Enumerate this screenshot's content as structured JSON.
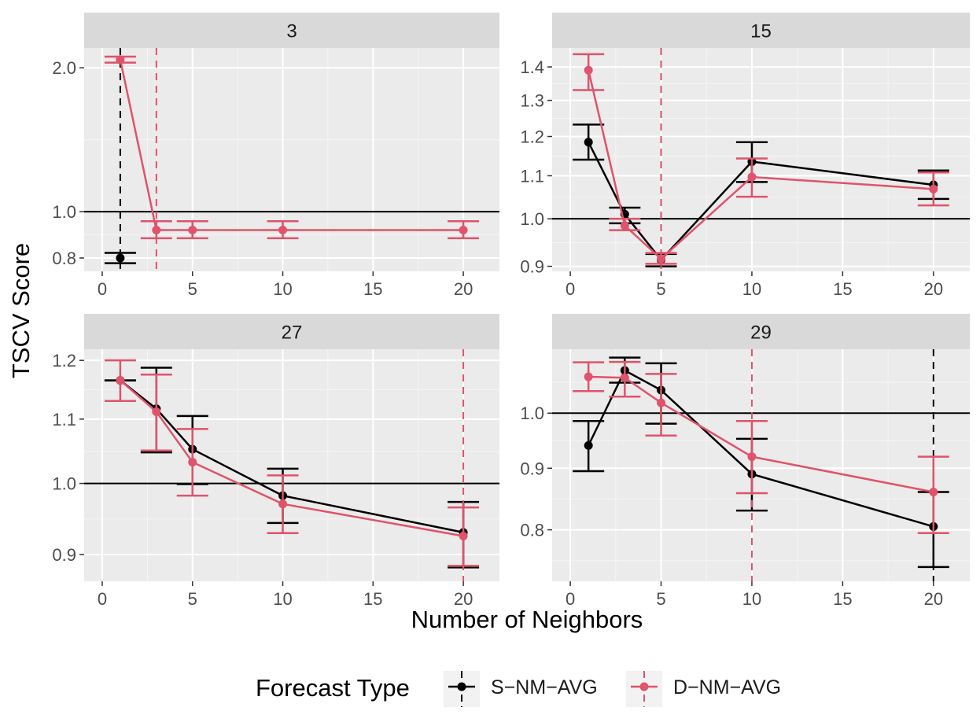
{
  "colors": {
    "panel_bg": "#EBEBEB",
    "strip_bg": "#D9D9D9",
    "grid_major": "#FFFFFF",
    "grid_minor": "#F5F5F5",
    "reference_line": "#000000",
    "text": "#1A1A1A",
    "tick_text": "#4D4D4D"
  },
  "chart_data": [
    {
      "type": "line",
      "panel": "3",
      "xlim": [
        -1,
        22
      ],
      "ylim": [
        0.75,
        2.2
      ],
      "y_scale": "log",
      "x_ticks": [
        0,
        5,
        10,
        15,
        20
      ],
      "y_ticks": [
        0.8,
        1.0,
        2.0
      ],
      "y_tick_labels": [
        "0.8",
        "1.0",
        "2.0"
      ],
      "reference_y": 1.0,
      "series": [
        {
          "name": "S−NM−AVG",
          "color": "#000000",
          "x": [
            1
          ],
          "y": [
            0.8
          ],
          "ymin": [
            0.78
          ],
          "ymax": [
            0.82
          ],
          "best_x": 1
        },
        {
          "name": "D−NM−AVG",
          "color": "#DF536B",
          "x": [
            1,
            3,
            5,
            10,
            20
          ],
          "y": [
            2.08,
            0.915,
            0.915,
            0.915,
            0.915
          ],
          "ymin": [
            2.05,
            0.88,
            0.88,
            0.88,
            0.88
          ],
          "ymax": [
            2.11,
            0.955,
            0.955,
            0.955,
            0.955
          ],
          "best_x": 3
        }
      ]
    },
    {
      "type": "line",
      "panel": "15",
      "xlim": [
        -1,
        22
      ],
      "ylim": [
        0.89,
        1.46
      ],
      "y_scale": "log",
      "x_ticks": [
        0,
        5,
        10,
        15,
        20
      ],
      "y_ticks": [
        0.9,
        1.0,
        1.1,
        1.2,
        1.3,
        1.4
      ],
      "y_tick_labels": [
        "0.9",
        "1.0",
        "1.1",
        "1.2",
        "1.3",
        "1.4"
      ],
      "reference_y": 1.0,
      "series": [
        {
          "name": "S−NM−AVG",
          "color": "#000000",
          "x": [
            1,
            3,
            5,
            10,
            20
          ],
          "y": [
            1.185,
            1.01,
            0.913,
            1.135,
            1.078
          ],
          "ymin": [
            1.14,
            0.99,
            0.9,
            1.085,
            1.045
          ],
          "ymax": [
            1.232,
            1.025,
            0.925,
            1.185,
            1.113
          ],
          "best_x": 5
        },
        {
          "name": "D−NM−AVG",
          "color": "#DF536B",
          "x": [
            1,
            3,
            5,
            10,
            20
          ],
          "y": [
            1.39,
            0.985,
            0.915,
            1.097,
            1.068
          ],
          "ymin": [
            1.33,
            0.975,
            0.905,
            1.05,
            1.03
          ],
          "ymax": [
            1.44,
            1.0,
            0.927,
            1.143,
            1.108
          ],
          "best_x": 5
        }
      ]
    },
    {
      "type": "line",
      "panel": "27",
      "xlim": [
        -1,
        22
      ],
      "ylim": [
        0.865,
        1.22
      ],
      "y_scale": "log",
      "x_ticks": [
        0,
        5,
        10,
        15,
        20
      ],
      "y_ticks": [
        0.9,
        1.0,
        1.1,
        1.2
      ],
      "y_tick_labels": [
        "0.9",
        "1.0",
        "1.1",
        "1.2"
      ],
      "reference_y": 1.0,
      "series": [
        {
          "name": "S−NM−AVG",
          "color": "#000000",
          "x": [
            1,
            3,
            5,
            10,
            20
          ],
          "y": [
            1.165,
            1.117,
            1.052,
            0.982,
            0.93
          ],
          "ymin": [
            1.165,
            1.047,
            0.999,
            0.943,
            0.883
          ],
          "ymax": [
            1.165,
            1.187,
            1.105,
            1.022,
            0.973
          ],
          "best_x": null
        },
        {
          "name": "D−NM−AVG",
          "color": "#DF536B",
          "x": [
            1,
            3,
            5,
            10,
            20
          ],
          "y": [
            1.165,
            1.112,
            1.032,
            0.97,
            0.925
          ],
          "ymin": [
            1.13,
            1.05,
            0.982,
            0.929,
            0.885
          ],
          "ymax": [
            1.2,
            1.175,
            1.084,
            1.012,
            0.965
          ],
          "best_x": 20
        }
      ]
    },
    {
      "type": "line",
      "panel": "29",
      "xlim": [
        -1,
        22
      ],
      "ylim": [
        0.725,
        1.13
      ],
      "y_scale": "log",
      "x_ticks": [
        0,
        5,
        10,
        15,
        20
      ],
      "y_ticks": [
        0.8,
        0.9,
        1.0
      ],
      "y_tick_labels": [
        "0.8",
        "0.9",
        "1.0"
      ],
      "reference_y": 1.0,
      "series": [
        {
          "name": "S−NM−AVG",
          "color": "#000000",
          "x": [
            1,
            3,
            5,
            10,
            20
          ],
          "y": [
            0.94,
            1.085,
            1.045,
            0.89,
            0.805
          ],
          "ymin": [
            0.895,
            1.06,
            0.98,
            0.83,
            0.745
          ],
          "ymax": [
            0.985,
            1.112,
            1.1,
            0.952,
            0.86
          ],
          "best_x": 20
        },
        {
          "name": "D−NM−AVG",
          "color": "#DF536B",
          "x": [
            1,
            3,
            5,
            10,
            20
          ],
          "y": [
            1.072,
            1.07,
            1.02,
            0.92,
            0.86
          ],
          "ymin": [
            1.043,
            1.032,
            0.958,
            0.858,
            0.795
          ],
          "ymax": [
            1.102,
            1.103,
            1.078,
            0.985,
            0.92
          ],
          "best_x": 10
        }
      ]
    }
  ],
  "axes": {
    "xlabel": "Number of Neighbors",
    "ylabel": "TSCV Score"
  },
  "legend": {
    "title": "Forecast Type",
    "position": "bottom",
    "entries": [
      {
        "label": "S−NM−AVG",
        "color": "#000000"
      },
      {
        "label": "D−NM−AVG",
        "color": "#DF536B"
      }
    ]
  }
}
